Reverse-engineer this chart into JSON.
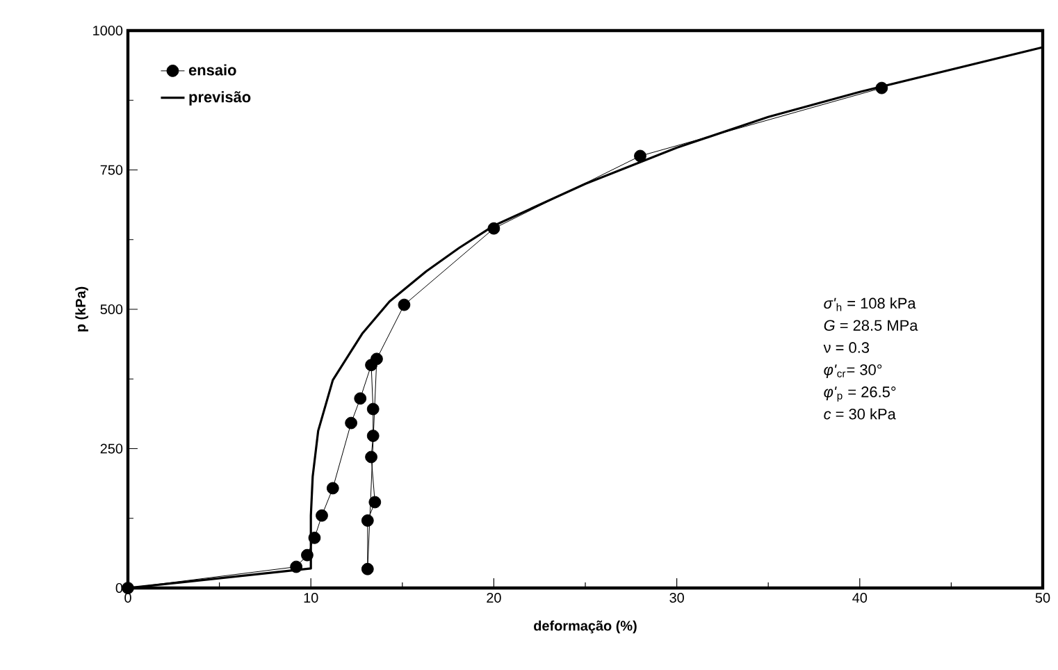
{
  "chart_data": {
    "type": "line",
    "xlabel": "deformação (%)",
    "ylabel": "p (kPa)",
    "xlim": [
      0,
      50
    ],
    "ylim": [
      0,
      1000
    ],
    "xticks": [
      0,
      10,
      20,
      30,
      40,
      50
    ],
    "yticks": [
      0,
      250,
      500,
      750,
      1000
    ],
    "legend": "top left",
    "grid": false,
    "series": [
      {
        "name": "ensaio",
        "color": "#000000",
        "marker": "circle",
        "x": [
          0,
          9.2,
          9.8,
          10.2,
          10.6,
          11.2,
          12.2,
          12.7,
          13.3,
          13.4,
          13.4,
          13.3,
          13.5,
          13.1,
          13.1,
          13.6,
          15.1,
          20,
          28,
          41.2
        ],
        "values": [
          0,
          38,
          59,
          90,
          130,
          179,
          296,
          340,
          400,
          321,
          273,
          235,
          154,
          121,
          34,
          411,
          508,
          645,
          775,
          897
        ]
      },
      {
        "name": "previsão",
        "color": "#000000",
        "marker": "none",
        "x": [
          0,
          10,
          10,
          10.1,
          10.4,
          11.2,
          12.8,
          14.3,
          16.3,
          18.1,
          20,
          25,
          30,
          35,
          40,
          45,
          50
        ],
        "values": [
          0,
          35,
          130,
          200,
          282,
          373,
          456,
          514,
          568,
          610,
          650,
          725,
          790,
          845,
          890,
          930,
          970
        ]
      }
    ],
    "annotations": [
      "*σ'*$_{h}$ = 108 kPa",
      "*G* = 28.5 MPa",
      "ν = 0.3",
      "*φ'*$_{cr}$= 30°",
      "*φ'*$_{p}$ = 26.5°",
      "*c* = 30 kPa"
    ]
  }
}
